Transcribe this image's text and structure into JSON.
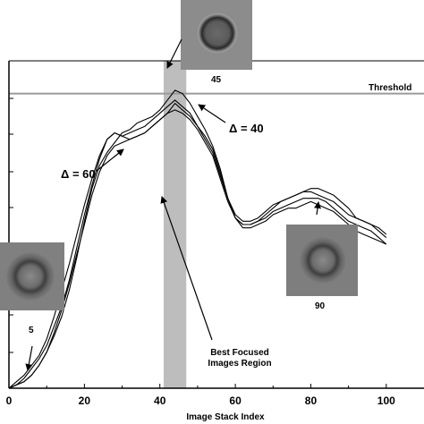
{
  "chart_data": {
    "type": "line",
    "title": "",
    "xlabel": "Image Stack Index",
    "ylabel": "",
    "xlim": [
      0,
      110
    ],
    "ylim": [
      0,
      1.0
    ],
    "x_ticks": [
      "0",
      "20",
      "40",
      "60",
      "80",
      "100"
    ],
    "grid": false,
    "legend": "none",
    "threshold": {
      "label": "Threshold",
      "y": 0.9
    },
    "best_focus_band": {
      "x0": 41,
      "x1": 47,
      "label_line1": "Best Focused",
      "label_line2": "Images Region"
    },
    "annotations": {
      "delta_60": "Δ = 60",
      "delta_40": "Δ = 40",
      "index_5": "5",
      "index_45": "45",
      "index_90": "90"
    },
    "thumbnails": [
      {
        "label": "5",
        "x": 5,
        "icon": "defocused-bead"
      },
      {
        "label": "45",
        "x": 45,
        "icon": "focused-bead"
      },
      {
        "label": "90",
        "x": 90,
        "icon": "defocused-bead"
      }
    ],
    "x": [
      0,
      2,
      4,
      6,
      8,
      10,
      12,
      14,
      16,
      18,
      20,
      22,
      24,
      26,
      28,
      30,
      32,
      34,
      36,
      38,
      40,
      42,
      44,
      46,
      48,
      50,
      52,
      54,
      56,
      58,
      60,
      62,
      64,
      66,
      68,
      70,
      72,
      74,
      76,
      78,
      80,
      82,
      84,
      86,
      88,
      90,
      92,
      94,
      96,
      98,
      100
    ],
    "series": [
      {
        "values": [
          0.0,
          0.01,
          0.02,
          0.04,
          0.07,
          0.11,
          0.16,
          0.22,
          0.3,
          0.4,
          0.51,
          0.61,
          0.68,
          0.72,
          0.75,
          0.78,
          0.79,
          0.81,
          0.82,
          0.83,
          0.85,
          0.88,
          0.91,
          0.9,
          0.87,
          0.83,
          0.79,
          0.74,
          0.67,
          0.58,
          0.52,
          0.5,
          0.5,
          0.51,
          0.53,
          0.55,
          0.57,
          0.58,
          0.59,
          0.6,
          0.61,
          0.61,
          0.6,
          0.59,
          0.57,
          0.55,
          0.52,
          0.51,
          0.5,
          0.48,
          0.46
        ],
        "color": "#000000"
      },
      {
        "values": [
          0.0,
          0.01,
          0.03,
          0.06,
          0.09,
          0.13,
          0.19,
          0.25,
          0.33,
          0.43,
          0.53,
          0.62,
          0.7,
          0.76,
          0.78,
          0.77,
          0.78,
          0.79,
          0.8,
          0.82,
          0.84,
          0.86,
          0.88,
          0.86,
          0.84,
          0.8,
          0.77,
          0.73,
          0.66,
          0.58,
          0.52,
          0.5,
          0.5,
          0.51,
          0.52,
          0.54,
          0.55,
          0.56,
          0.57,
          0.58,
          0.58,
          0.58,
          0.57,
          0.55,
          0.53,
          0.51,
          0.5,
          0.49,
          0.48,
          0.46,
          0.44
        ],
        "color": "#000000"
      },
      {
        "values": [
          0.0,
          0.02,
          0.04,
          0.07,
          0.1,
          0.15,
          0.22,
          0.3,
          0.38,
          0.47,
          0.56,
          0.64,
          0.71,
          0.76,
          0.78,
          0.77,
          0.76,
          0.77,
          0.78,
          0.8,
          0.82,
          0.84,
          0.87,
          0.85,
          0.83,
          0.8,
          0.76,
          0.72,
          0.65,
          0.58,
          0.53,
          0.51,
          0.51,
          0.52,
          0.54,
          0.56,
          0.57,
          0.58,
          0.59,
          0.6,
          0.6,
          0.59,
          0.58,
          0.57,
          0.55,
          0.53,
          0.52,
          0.51,
          0.5,
          0.49,
          0.47
        ],
        "color": "#000000"
      },
      {
        "values": [
          0.0,
          0.01,
          0.02,
          0.04,
          0.07,
          0.11,
          0.17,
          0.24,
          0.32,
          0.41,
          0.5,
          0.59,
          0.66,
          0.71,
          0.74,
          0.75,
          0.76,
          0.77,
          0.78,
          0.8,
          0.82,
          0.84,
          0.85,
          0.84,
          0.82,
          0.79,
          0.75,
          0.71,
          0.64,
          0.57,
          0.52,
          0.49,
          0.49,
          0.5,
          0.51,
          0.53,
          0.54,
          0.55,
          0.55,
          0.56,
          0.57,
          0.56,
          0.55,
          0.54,
          0.52,
          0.5,
          0.48,
          0.47,
          0.46,
          0.45,
          0.44
        ],
        "color": "#000000"
      }
    ]
  }
}
